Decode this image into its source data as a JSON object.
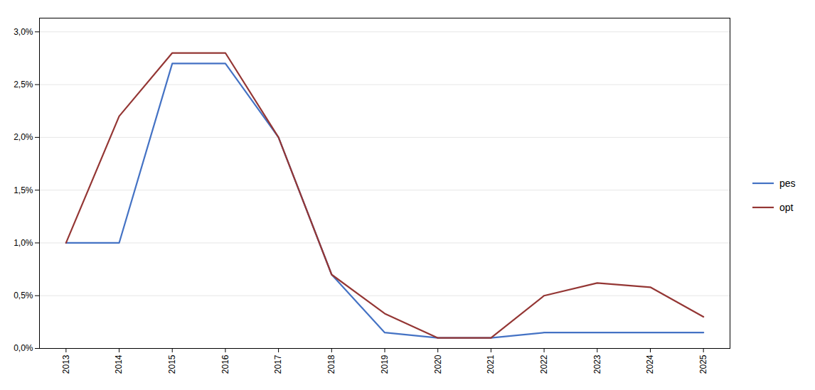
{
  "chart_data": {
    "type": "line",
    "x": [
      2013,
      2014,
      2015,
      2016,
      2017,
      2018,
      2019,
      2020,
      2021,
      2022,
      2023,
      2024,
      2025
    ],
    "xlim": [
      2012.5,
      2025.5
    ],
    "xticks": [
      2013,
      2014,
      2015,
      2016,
      2017,
      2018,
      2019,
      2020,
      2021,
      2022,
      2023,
      2024,
      2025
    ],
    "ylim": [
      0.0,
      0.0313
    ],
    "yticks": [
      {
        "value": 0.0,
        "label": "0,0%"
      },
      {
        "value": 0.005,
        "label": "0,5%"
      },
      {
        "value": 0.01,
        "label": "1,0%"
      },
      {
        "value": 0.015,
        "label": "1,5%"
      },
      {
        "value": 0.02,
        "label": "2,0%"
      },
      {
        "value": 0.025,
        "label": "2,5%"
      },
      {
        "value": 0.03,
        "label": "3,0%"
      }
    ],
    "grid": "y",
    "legend": "right",
    "series": [
      {
        "name": "pes",
        "color": "#4472c4",
        "values": [
          0.01,
          0.01,
          0.027,
          0.027,
          0.02,
          0.007,
          0.0015,
          0.001,
          0.001,
          0.0015,
          0.0015,
          0.0015,
          0.0015
        ]
      },
      {
        "name": "opt",
        "color": "#943634",
        "values": [
          0.01,
          0.022,
          0.028,
          0.028,
          0.02,
          0.007,
          0.0033,
          0.001,
          0.001,
          0.005,
          0.0062,
          0.0058,
          0.003
        ]
      }
    ]
  }
}
